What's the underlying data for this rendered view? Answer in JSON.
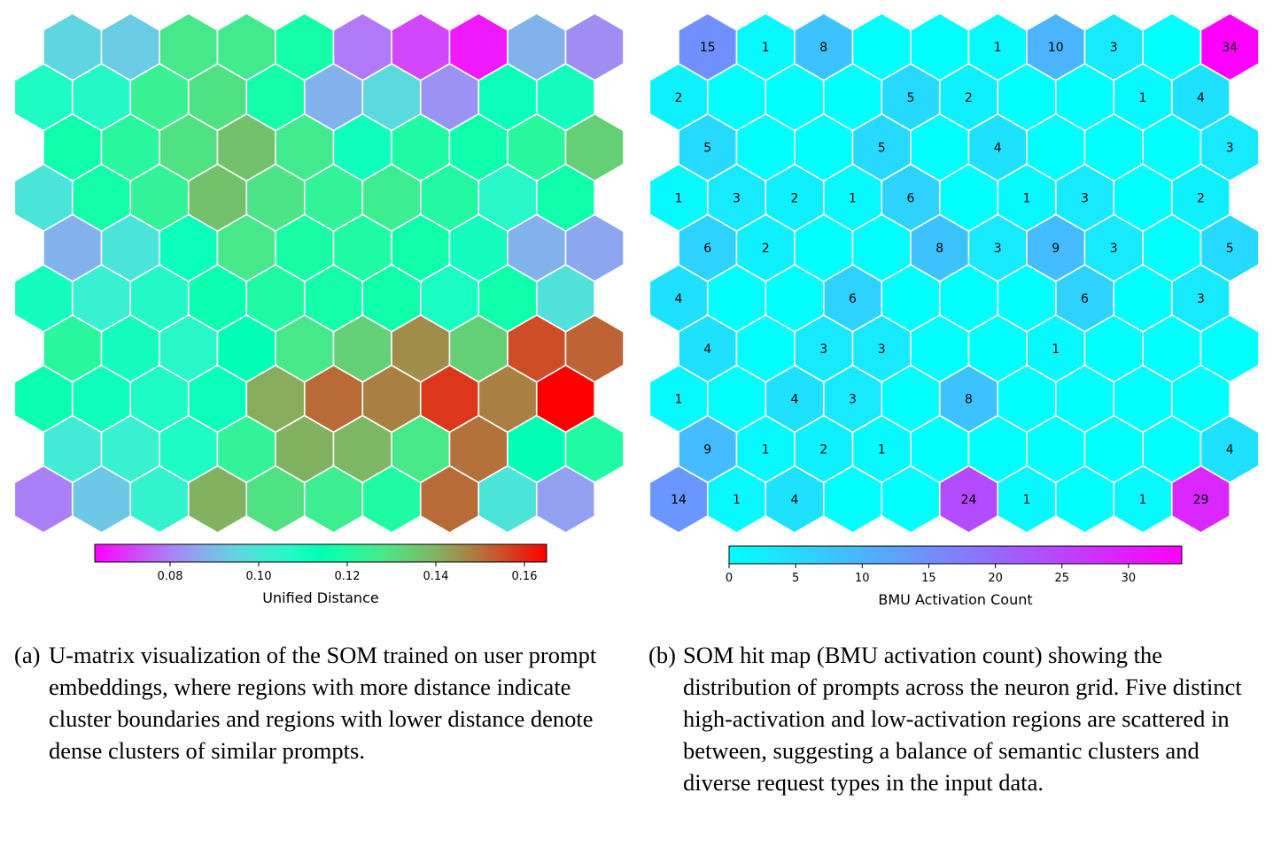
{
  "chart_data": [
    {
      "type": "heatmap",
      "subtype": "hexagonal-som-u-matrix",
      "grid": {
        "rows": 10,
        "cols": 10,
        "layout": "hexagonal, odd rows offset to the left"
      },
      "values": [
        [
          0.095,
          0.093,
          0.128,
          0.127,
          0.118,
          0.079,
          0.072,
          0.066,
          0.088,
          0.082
        ],
        [
          0.108,
          0.107,
          0.125,
          0.13,
          0.118,
          0.088,
          0.096,
          0.083,
          0.112,
          0.11
        ],
        [
          0.117,
          0.122,
          0.13,
          0.137,
          0.127,
          0.111,
          0.12,
          0.117,
          0.122,
          0.134
        ],
        [
          0.099,
          0.118,
          0.124,
          0.137,
          0.129,
          0.124,
          0.126,
          0.121,
          0.106,
          0.117
        ],
        [
          0.088,
          0.099,
          0.112,
          0.128,
          0.119,
          0.12,
          0.117,
          0.11,
          0.088,
          0.086
        ],
        [
          0.11,
          0.103,
          0.107,
          0.116,
          0.12,
          0.118,
          0.117,
          0.109,
          0.117,
          0.098
        ],
        [
          0.122,
          0.11,
          0.106,
          0.114,
          0.128,
          0.134,
          0.146,
          0.134,
          0.155,
          0.152
        ],
        [
          0.116,
          0.111,
          0.108,
          0.112,
          0.141,
          0.151,
          0.148,
          0.158,
          0.148,
          0.165
        ],
        [
          0.101,
          0.103,
          0.108,
          0.124,
          0.14,
          0.139,
          0.128,
          0.15,
          0.114,
          0.12
        ],
        [
          0.08,
          0.092,
          0.104,
          0.14,
          0.13,
          0.126,
          0.12,
          0.151,
          0.099,
          0.085
        ]
      ],
      "colorbar": {
        "label": "Unified Distance",
        "min": 0.063,
        "max": 0.165,
        "ticks": [
          0.08,
          0.1,
          0.12,
          0.14,
          0.16
        ],
        "tick_labels": [
          "0.08",
          "0.10",
          "0.12",
          "0.14",
          "0.16"
        ],
        "colormap": "rainbow",
        "orientation": "horizontal",
        "position": "bottom"
      }
    },
    {
      "type": "heatmap",
      "subtype": "hexagonal-som-hit-map",
      "grid": {
        "rows": 10,
        "cols": 10,
        "layout": "hexagonal, odd rows offset to the left"
      },
      "values": [
        [
          15,
          1,
          8,
          0,
          0,
          1,
          10,
          3,
          0,
          34
        ],
        [
          2,
          0,
          0,
          0,
          5,
          2,
          0,
          0,
          1,
          4
        ],
        [
          5,
          0,
          0,
          5,
          0,
          4,
          0,
          0,
          0,
          3
        ],
        [
          1,
          3,
          2,
          1,
          6,
          0,
          1,
          3,
          0,
          2
        ],
        [
          6,
          2,
          0,
          0,
          8,
          3,
          9,
          3,
          0,
          5
        ],
        [
          4,
          0,
          0,
          6,
          0,
          0,
          0,
          6,
          0,
          3
        ],
        [
          4,
          0,
          3,
          3,
          0,
          0,
          1,
          0,
          0,
          0
        ],
        [
          1,
          0,
          4,
          3,
          0,
          8,
          0,
          0,
          0,
          0
        ],
        [
          9,
          1,
          2,
          1,
          0,
          0,
          0,
          0,
          0,
          4
        ],
        [
          14,
          1,
          4,
          0,
          0,
          24,
          1,
          0,
          1,
          29
        ]
      ],
      "colorbar": {
        "label": "BMU Activation Count",
        "min": 0,
        "max": 34,
        "ticks": [
          0,
          5,
          10,
          15,
          20,
          25,
          30
        ],
        "tick_labels": [
          "0",
          "5",
          "10",
          "15",
          "20",
          "25",
          "30"
        ],
        "colormap": "cool",
        "orientation": "horizontal",
        "position": "bottom"
      }
    }
  ],
  "captions": {
    "a": {
      "label": "(a)",
      "text": "U-matrix visualization of the SOM trained on user prompt embeddings, where regions with more distance indicate cluster boundaries and regions with lower distance denote dense clusters of similar prompts."
    },
    "b": {
      "label": "(b)",
      "text": "SOM hit map (BMU activation count) showing the distribution of prompts across the neuron grid. Five distinct high-activation and low-activation regions are scattered in between, suggesting a balance of semantic clusters and diverse request types in the input data."
    }
  }
}
